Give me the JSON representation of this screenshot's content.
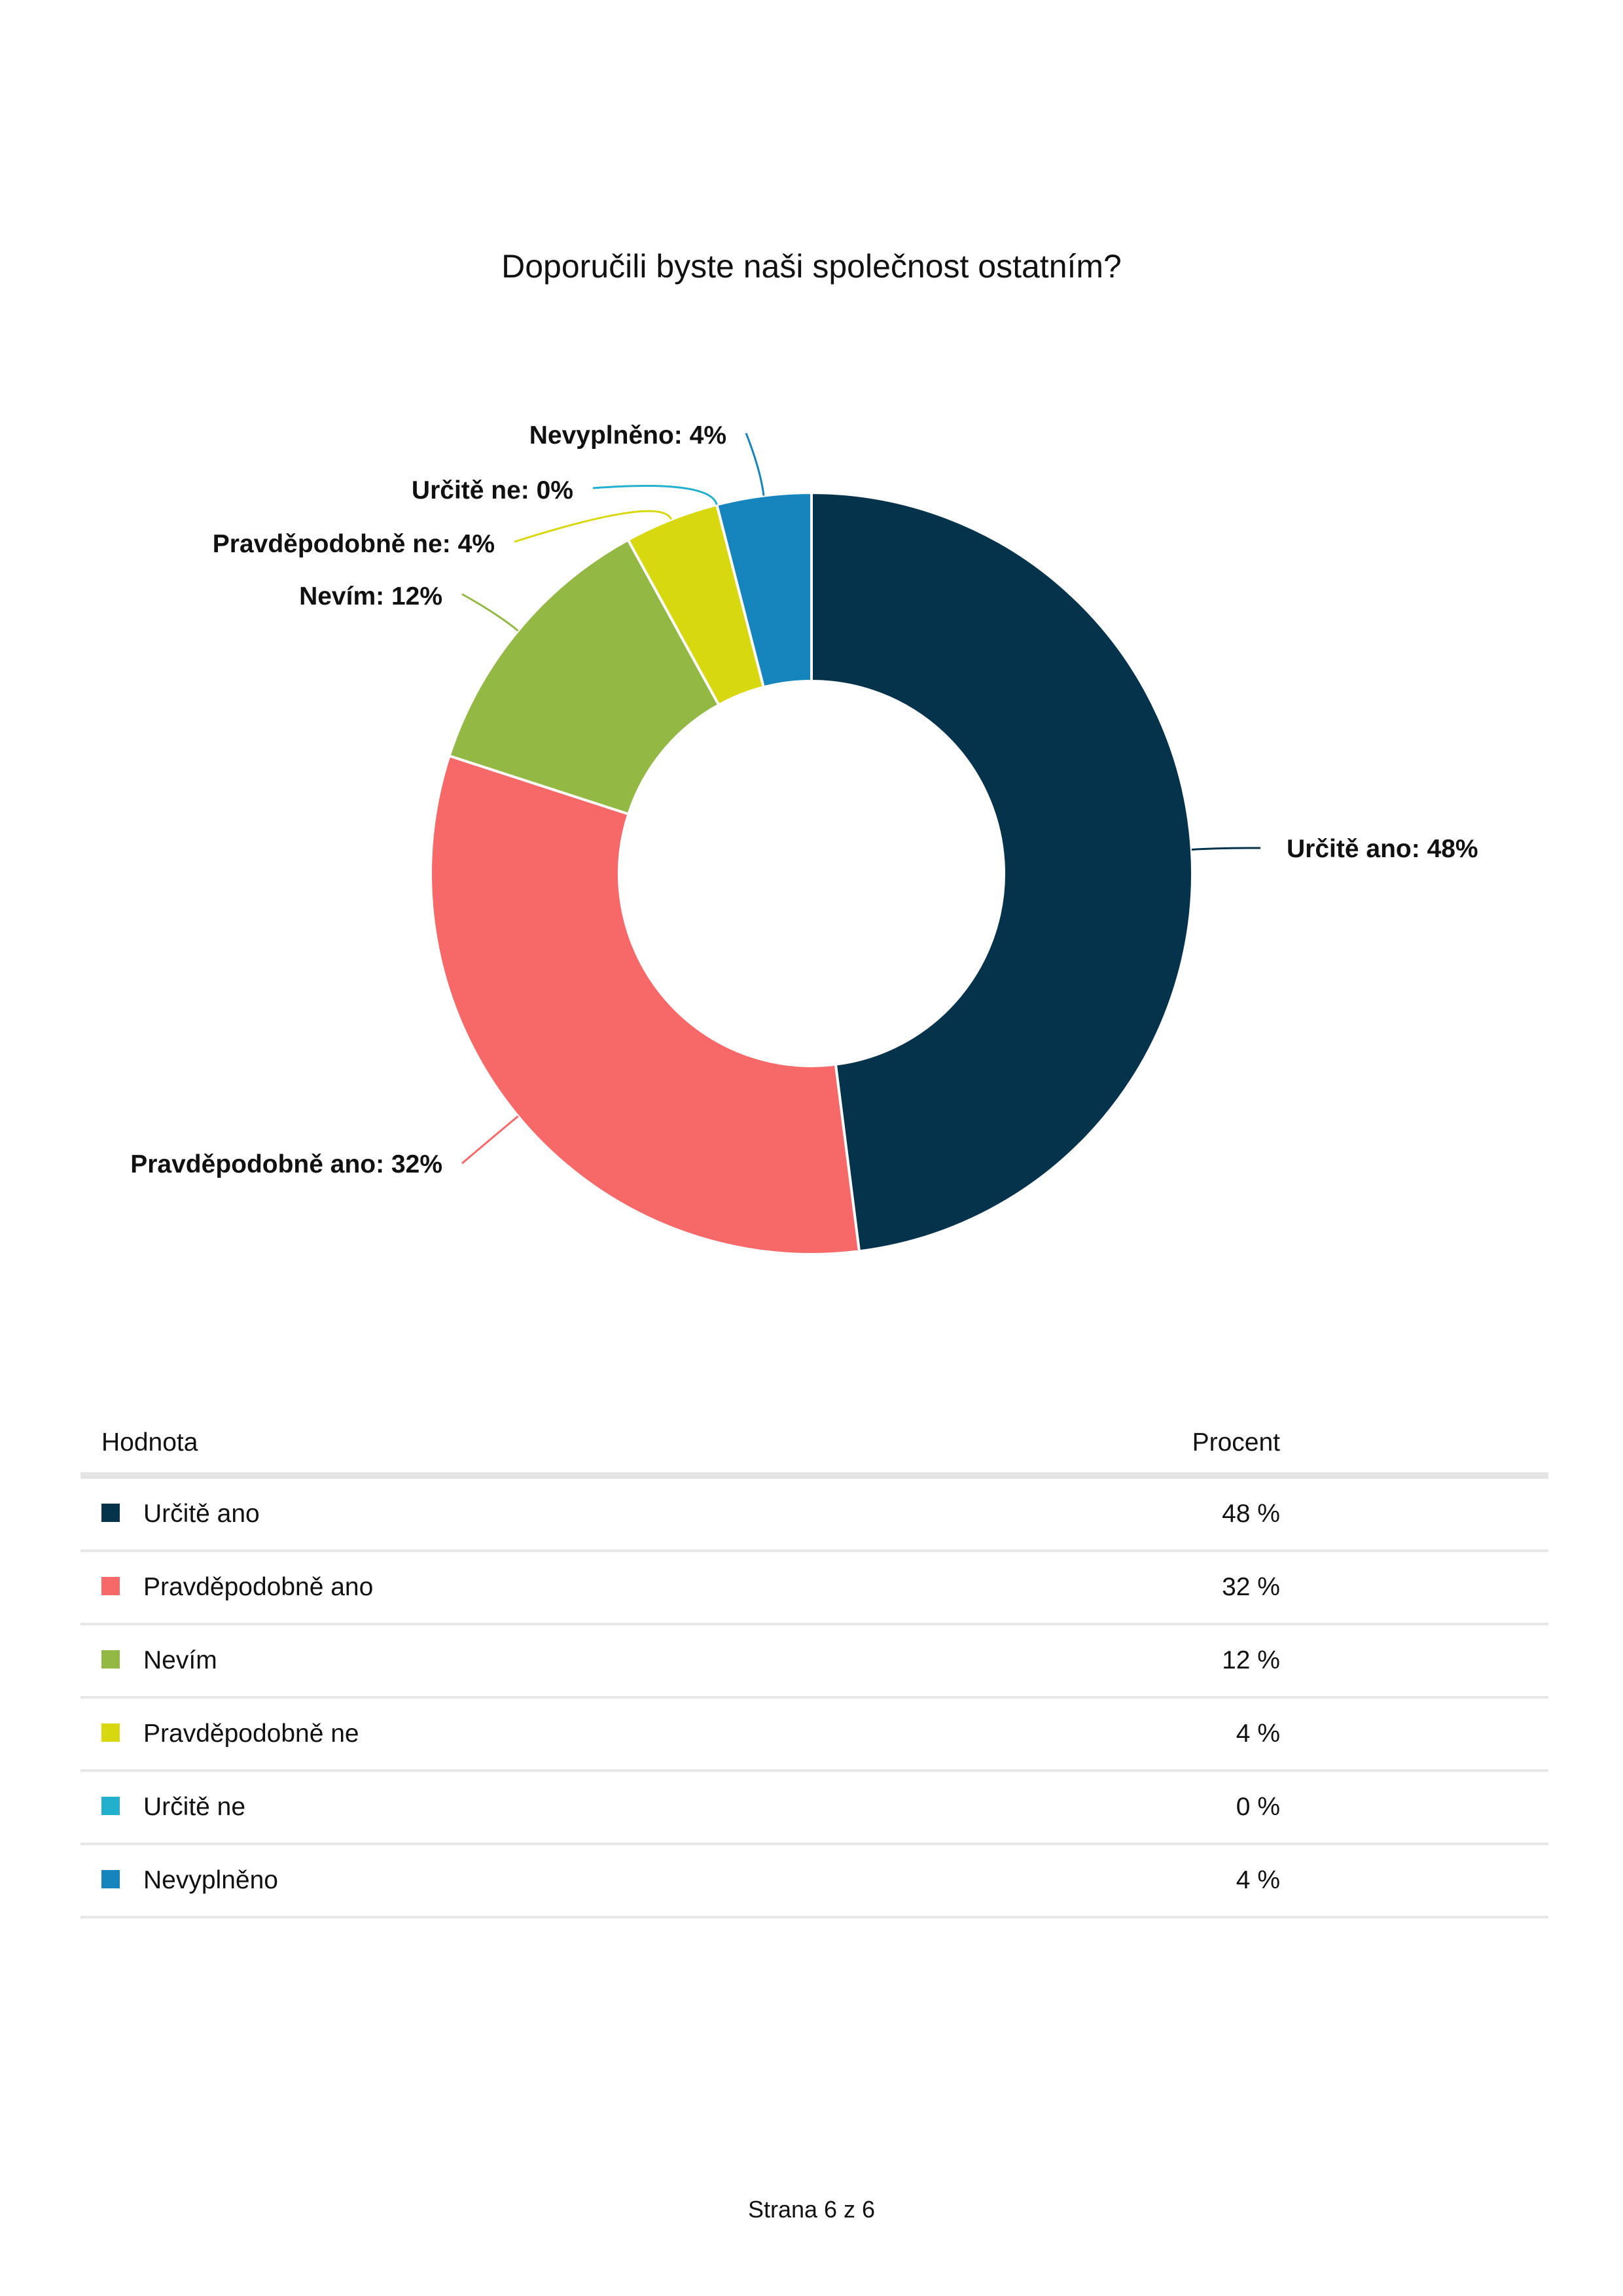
{
  "page": {
    "footer": "Strana 6  z  6"
  },
  "chart_data": {
    "type": "pie",
    "variant": "donut",
    "title": "Doporučili byste naši společnost ostatním?",
    "categories": [
      "Určitě ano",
      "Pravděpodobně ano",
      "Nevím",
      "Pravděpodobně ne",
      "Určitě ne",
      "Nevyplněno"
    ],
    "values": [
      48,
      32,
      12,
      4,
      0,
      4
    ],
    "labels": [
      "Určitě ano: 48%",
      "Pravděpodobně ano: 32%",
      "Nevím: 12%",
      "Pravděpodobně ne: 4%",
      "Určitě ne: 0%",
      "Nevyplněno: 4%"
    ],
    "colors": [
      "#05334b",
      "#f76868",
      "#93b843",
      "#d8d810",
      "#22b0cc",
      "#1685be"
    ],
    "legend": "table-below"
  },
  "table": {
    "headers": {
      "value": "Hodnota",
      "percent": "Procent"
    },
    "rows": [
      {
        "label": "Určitě ano",
        "percent": "48 %",
        "color": "#05334b"
      },
      {
        "label": "Pravděpodobně ano",
        "percent": "32 %",
        "color": "#f76868"
      },
      {
        "label": "Nevím",
        "percent": "12 %",
        "color": "#93b843"
      },
      {
        "label": "Pravděpodobně ne",
        "percent": "4 %",
        "color": "#d8d810"
      },
      {
        "label": "Určitě ne",
        "percent": "0 %",
        "color": "#22b0cc"
      },
      {
        "label": "Nevyplněno",
        "percent": "4 %",
        "color": "#1685be"
      }
    ]
  }
}
